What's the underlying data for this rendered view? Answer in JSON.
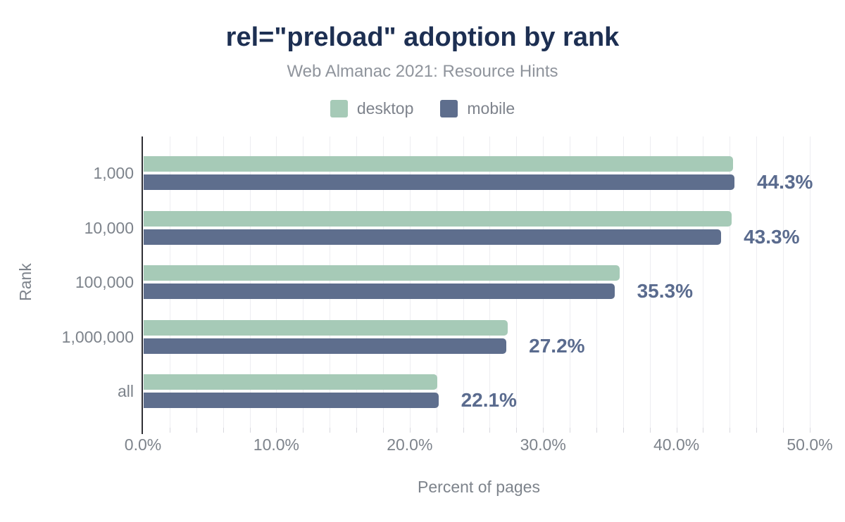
{
  "title": "rel=\"preload\" adoption by rank",
  "subtitle": "Web Almanac 2021: Resource Hints",
  "legend": [
    {
      "label": "desktop",
      "color": "#a6cab7"
    },
    {
      "label": "mobile",
      "color": "#5e6e8d"
    }
  ],
  "colors": {
    "title": "#1d2f52",
    "subtitle_gray": "#8f949c",
    "axis_text_gray": "#7d838b",
    "annotation": "#5a6b8e",
    "gridline": "#ededf1",
    "axis_line": "#2f2f35",
    "desktop_bar": "#a6cab7",
    "mobile_bar": "#5e6e8d",
    "background": "#ffffff"
  },
  "chart_data": {
    "type": "bar",
    "orientation": "horizontal",
    "title": "rel=\"preload\" adoption by rank",
    "subtitle": "Web Almanac 2021: Resource Hints",
    "categories": [
      "1,000",
      "10,000",
      "100,000",
      "1,000,000",
      "all"
    ],
    "series": [
      {
        "name": "desktop",
        "color": "#a6cab7",
        "values": [
          44.2,
          44.1,
          35.7,
          27.3,
          22.0
        ]
      },
      {
        "name": "mobile",
        "color": "#5e6e8d",
        "values": [
          44.3,
          43.3,
          35.3,
          27.2,
          22.1
        ]
      }
    ],
    "annotations": [
      "44.3%",
      "43.3%",
      "35.3%",
      "27.2%",
      "22.1%"
    ],
    "annotation_series": "mobile",
    "xlabel": "Percent of pages",
    "ylabel": "Rank",
    "xlim": [
      0,
      50
    ],
    "x_ticks": [
      {
        "value": 0,
        "label": "0.0%"
      },
      {
        "value": 10,
        "label": "10.0%"
      },
      {
        "value": 20,
        "label": "20.0%"
      },
      {
        "value": 30,
        "label": "30.0%"
      },
      {
        "value": 40,
        "label": "40.0%"
      },
      {
        "value": 50,
        "label": "50.0%"
      }
    ],
    "grid": {
      "vertical_step_pct": 2,
      "horizontal": false
    },
    "legend_position": "top"
  }
}
